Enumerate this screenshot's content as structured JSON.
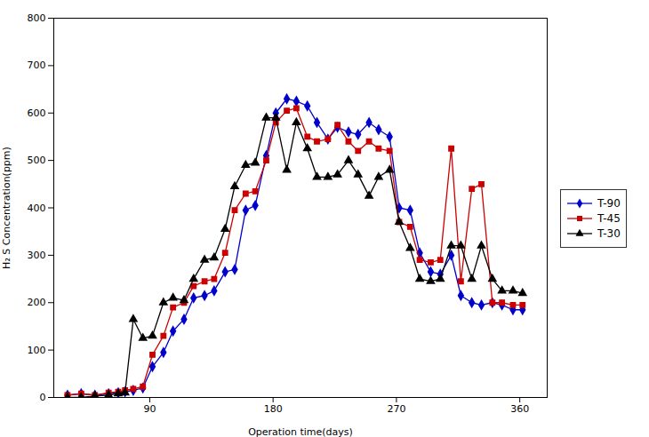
{
  "chart_data": {
    "type": "line",
    "x": [
      30,
      40,
      50,
      60,
      67,
      72,
      78,
      85,
      92,
      100,
      107,
      115,
      122,
      130,
      137,
      145,
      152,
      160,
      167,
      175,
      182,
      190,
      197,
      205,
      212,
      220,
      227,
      235,
      242,
      250,
      257,
      265,
      272,
      280,
      287,
      295,
      302,
      310,
      317,
      325,
      332,
      340,
      347,
      355,
      362
    ],
    "series": [
      {
        "name": "T-90",
        "color": "#0000cc",
        "marker": "diamond",
        "values": [
          5,
          8,
          5,
          8,
          10,
          12,
          15,
          20,
          65,
          95,
          140,
          165,
          210,
          215,
          225,
          265,
          270,
          395,
          405,
          510,
          600,
          630,
          625,
          615,
          580,
          545,
          570,
          560,
          555,
          580,
          565,
          550,
          400,
          395,
          305,
          265,
          260,
          300,
          215,
          200,
          195,
          200,
          195,
          185,
          185
        ]
      },
      {
        "name": "T-45",
        "color": "#cc0000",
        "marker": "square",
        "values": [
          5,
          8,
          5,
          10,
          12,
          15,
          18,
          23,
          90,
          130,
          190,
          200,
          235,
          245,
          250,
          305,
          395,
          430,
          435,
          500,
          580,
          605,
          610,
          550,
          540,
          545,
          575,
          540,
          520,
          540,
          525,
          520,
          370,
          360,
          290,
          285,
          290,
          525,
          245,
          440,
          450,
          200,
          200,
          195,
          195
        ]
      },
      {
        "name": "T-30",
        "color": "#000000",
        "marker": "triangle",
        "values": [
          0,
          0,
          3,
          5,
          8,
          10,
          165,
          125,
          130,
          200,
          210,
          205,
          250,
          290,
          295,
          355,
          445,
          490,
          495,
          590,
          590,
          480,
          580,
          525,
          465,
          465,
          470,
          500,
          470,
          425,
          465,
          480,
          370,
          315,
          250,
          245,
          250,
          320,
          320,
          250,
          320,
          250,
          225,
          225,
          220
        ]
      }
    ],
    "xlim": [
      20,
      380
    ],
    "ylim": [
      0,
      800
    ],
    "xticks": [
      90,
      180,
      270,
      360
    ],
    "yticks": [
      0,
      100,
      200,
      300,
      400,
      500,
      600,
      700,
      800
    ],
    "xlabel": "Operation time(days)",
    "ylabel": "H₂ S Concentration(ppm)",
    "grid": false,
    "legend": "right"
  }
}
